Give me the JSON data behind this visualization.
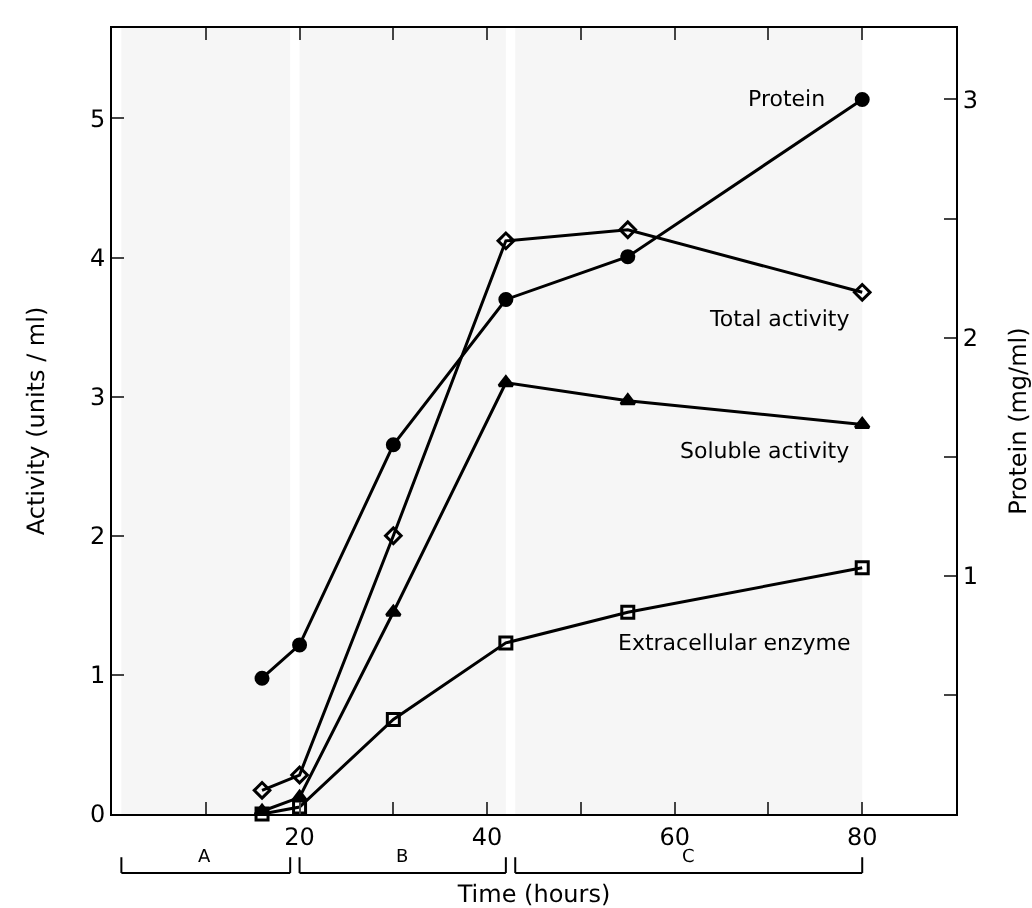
{
  "chart_data": {
    "type": "line",
    "xlabel": "Time (hours)",
    "ylabel": "Activity (units / ml)",
    "y2label": "Protein (mg/ml)",
    "xlim": [
      0,
      90
    ],
    "ylim": [
      0,
      5.65
    ],
    "y2lim": [
      0,
      3.3
    ],
    "xticks": [
      {
        "value": 0,
        "label": null
      },
      {
        "value": 10,
        "label": null
      },
      20,
      {
        "value": 30,
        "label": null
      },
      40,
      {
        "value": 50,
        "label": null
      },
      60,
      {
        "value": 70,
        "label": null
      },
      80
    ],
    "yticks": [
      0,
      1,
      2,
      3,
      4,
      5
    ],
    "y2ticks": [
      {
        "value": 0.5,
        "label": null
      },
      1,
      {
        "value": 1.5,
        "label": null
      },
      2,
      {
        "value": 2.5,
        "label": null
      },
      3
    ],
    "grid": false,
    "legend": false,
    "series": [
      {
        "name": "Protein",
        "color": "#000000",
        "marker": "circle",
        "axis": "y2",
        "x": [
          16,
          20,
          30,
          42,
          55,
          80
        ],
        "values": [
          0.57,
          0.71,
          1.55,
          2.16,
          2.34,
          3.0
        ]
      },
      {
        "name": "Total activity",
        "color": "#000000",
        "marker": "diamond",
        "x": [
          16,
          20,
          30,
          42,
          55,
          80
        ],
        "values": [
          0.17,
          0.28,
          2.0,
          4.12,
          4.2,
          3.75
        ]
      },
      {
        "name": "Soluble activity",
        "color": "#000000",
        "marker": "triangle",
        "x": [
          16,
          20,
          30,
          42,
          55,
          80
        ],
        "values": [
          0.02,
          0.12,
          1.45,
          3.1,
          2.97,
          2.8
        ]
      },
      {
        "name": "Extracellular enzyme",
        "color": "#000000",
        "marker": "square",
        "x": [
          16,
          20,
          30,
          42,
          55,
          80
        ],
        "values": [
          0,
          0.05,
          0.68,
          1.23,
          1.45,
          1.77
        ]
      }
    ],
    "bands": [
      {
        "axis": "x",
        "from": 1,
        "to": 19,
        "label": "A"
      },
      {
        "axis": "x",
        "from": 20,
        "to": 42,
        "label": "B"
      },
      {
        "axis": "x",
        "from": 43,
        "to": 80,
        "label": "C"
      }
    ]
  }
}
